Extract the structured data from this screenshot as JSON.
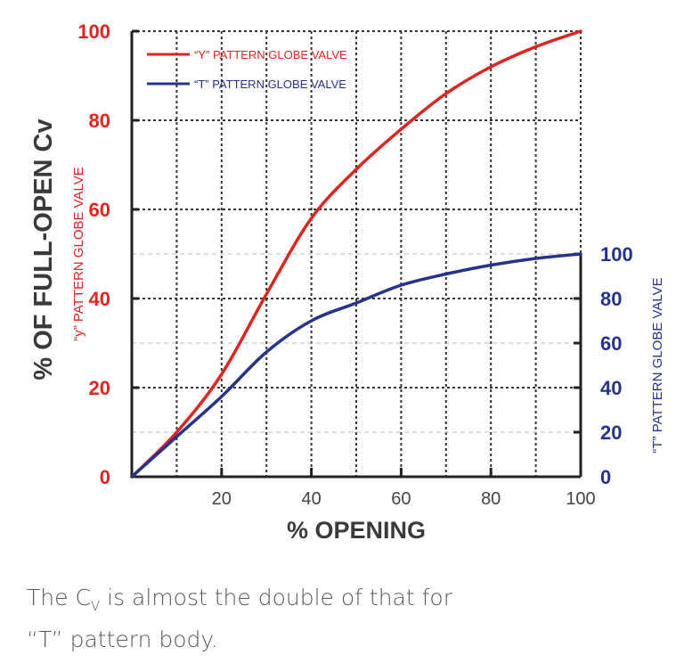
{
  "chart_data": {
    "type": "line",
    "x": [
      0,
      10,
      20,
      30,
      40,
      50,
      60,
      70,
      80,
      90,
      100
    ],
    "x_ticks": [
      "20",
      "40",
      "60",
      "80",
      "100"
    ],
    "xlabel": "% OPENING",
    "xlim": [
      0,
      100
    ],
    "left_axis": {
      "ylabel": "% OF FULL-OPEN Cv",
      "sublabel": "“y” PATTERN GLOBE VALVE",
      "ticks": [
        "0",
        "20",
        "40",
        "60",
        "80",
        "100"
      ],
      "ylim": [
        0,
        100
      ]
    },
    "right_axis": {
      "label": "“T” PATTERN GLOBE VALVE",
      "ticks": [
        "0",
        "20",
        "40",
        "60",
        "80",
        "100"
      ],
      "ylim": [
        0,
        100
      ]
    },
    "grid": true,
    "legend_position": "top-left",
    "series": [
      {
        "name": "“Y” PATTERN GLOBE VALVE",
        "axis": "left",
        "color": "#e0241f",
        "values": [
          0,
          10,
          23,
          41,
          58,
          69,
          78,
          86,
          92,
          96.5,
          100
        ]
      },
      {
        "name": "“T” PATTERN GLOBE VALVE",
        "axis": "right",
        "color": "#26338a",
        "values": [
          0,
          18,
          36,
          56,
          70,
          78,
          86,
          91,
          95,
          98,
          100
        ]
      }
    ]
  },
  "caption": {
    "line1_pre": "The C",
    "line1_sub": "V",
    "line1_post": " is almost the double of that for",
    "line2": "“T” pattern body."
  }
}
